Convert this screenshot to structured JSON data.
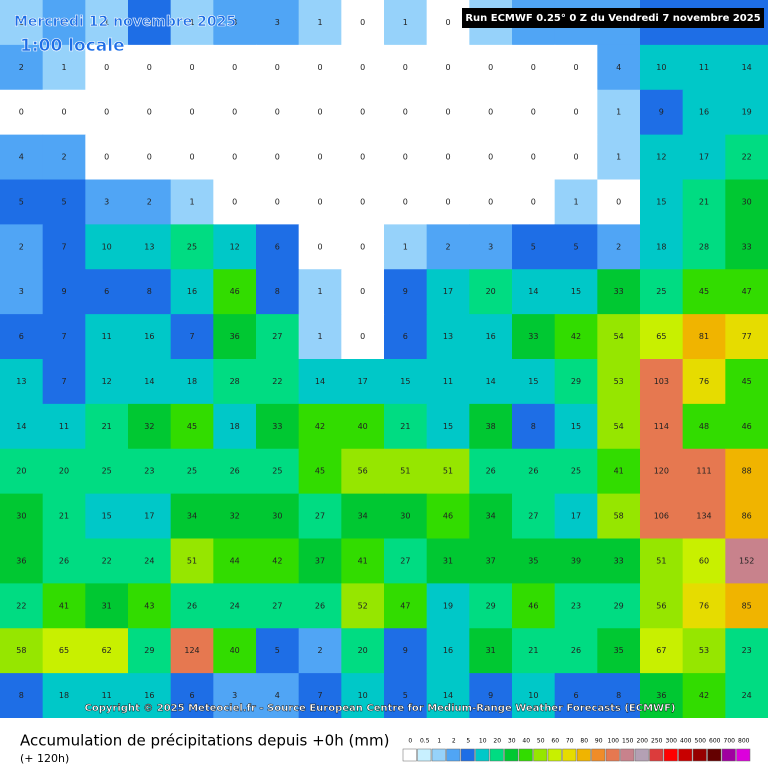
{
  "header": {
    "date": "Mercredi 12 novembre 2025",
    "time": "1:00 locale",
    "run": "Run ECMWF 0.25° 0 Z du Vendredi 7 novembre 2025"
  },
  "map": {
    "grid": [
      [
        1,
        2,
        1,
        5,
        1,
        3,
        3,
        1,
        0,
        1,
        0,
        1,
        4,
        2,
        4,
        5,
        6,
        8
      ],
      [
        2,
        1,
        0,
        0,
        0,
        0,
        0,
        0,
        0,
        0,
        0,
        0,
        0,
        0,
        4,
        10,
        11,
        14
      ],
      [
        0,
        0,
        0,
        0,
        0,
        0,
        0,
        0,
        0,
        0,
        0,
        0,
        0,
        0,
        1,
        9,
        16,
        19
      ],
      [
        4,
        2,
        0,
        0,
        0,
        0,
        0,
        0,
        0,
        0,
        0,
        0,
        0,
        0,
        1,
        12,
        17,
        22
      ],
      [
        5,
        5,
        3,
        2,
        1,
        0,
        0,
        0,
        0,
        0,
        0,
        0,
        0,
        1,
        0,
        15,
        21,
        30
      ],
      [
        2,
        7,
        10,
        13,
        25,
        12,
        6,
        0,
        0,
        1,
        2,
        3,
        5,
        5,
        2,
        18,
        28,
        33
      ],
      [
        3,
        9,
        6,
        8,
        16,
        46,
        8,
        1,
        0,
        9,
        17,
        20,
        14,
        15,
        33,
        25,
        45,
        47
      ],
      [
        6,
        7,
        11,
        16,
        7,
        36,
        27,
        1,
        0,
        6,
        13,
        16,
        33,
        42,
        54,
        65,
        81,
        77
      ],
      [
        13,
        7,
        12,
        14,
        18,
        28,
        22,
        14,
        17,
        15,
        11,
        14,
        15,
        29,
        53,
        103,
        76,
        45
      ],
      [
        14,
        11,
        21,
        32,
        45,
        18,
        33,
        42,
        40,
        21,
        15,
        38,
        8,
        15,
        54,
        114,
        48,
        46
      ],
      [
        20,
        20,
        25,
        23,
        25,
        26,
        25,
        45,
        56,
        51,
        51,
        26,
        26,
        25,
        41,
        120,
        111,
        88
      ],
      [
        30,
        21,
        15,
        17,
        34,
        32,
        30,
        27,
        34,
        30,
        46,
        34,
        27,
        17,
        58,
        106,
        134,
        86
      ],
      [
        36,
        26,
        22,
        24,
        51,
        44,
        42,
        37,
        41,
        27,
        31,
        37,
        35,
        39,
        33,
        51,
        60,
        152
      ],
      [
        22,
        41,
        31,
        43,
        26,
        24,
        27,
        26,
        52,
        47,
        19,
        29,
        46,
        23,
        29,
        56,
        76,
        85
      ],
      [
        58,
        65,
        62,
        29,
        124,
        40,
        5,
        2,
        20,
        9,
        16,
        31,
        21,
        26,
        35,
        67,
        53,
        23
      ],
      [
        8,
        18,
        11,
        16,
        6,
        3,
        4,
        7,
        10,
        5,
        14,
        9,
        10,
        6,
        8,
        36,
        42,
        24
      ]
    ]
  },
  "copyright": "Copyright © 2025 Meteociel.fr - Source European Centre for Medium-Range Weather Forecasts (ECMWF)",
  "footer": {
    "title": "Accumulation de précipitations depuis +0h (mm)",
    "subtitle": "(+ 120h)",
    "scale": {
      "values": [
        0,
        0.5,
        1,
        2,
        5,
        10,
        20,
        30,
        40,
        50,
        60,
        70,
        80,
        90,
        100,
        150,
        200,
        250,
        300,
        400,
        500,
        600,
        700,
        800
      ],
      "colors": [
        "#ffffff",
        "#c8f0ff",
        "#96d2fa",
        "#50a5f5",
        "#1e6ee6",
        "#00c8c8",
        "#00dc82",
        "#00c832",
        "#32dc00",
        "#96e600",
        "#c8f000",
        "#e6dc00",
        "#f0b400",
        "#f08c28",
        "#e67850",
        "#c8828c",
        "#b4a0b4",
        "#dc3c3c",
        "#ff0000",
        "#c80000",
        "#960000",
        "#640000",
        "#a000a0",
        "#dc00dc"
      ]
    }
  }
}
